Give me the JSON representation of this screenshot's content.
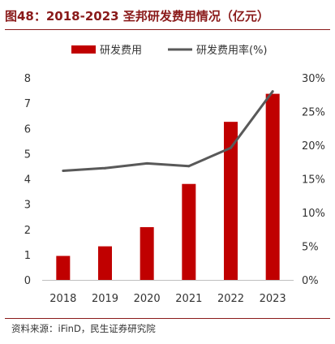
{
  "figure": {
    "title": "图48：2018-2023 圣邦研发费用情况（亿元）",
    "source": "资料来源：iFinD，民生证券研究院"
  },
  "chart_data": {
    "type": "bar",
    "categories": [
      "2018",
      "2019",
      "2020",
      "2021",
      "2022",
      "2023"
    ],
    "series": [
      {
        "name": "研发费用",
        "type": "bar",
        "axis": "left",
        "color": "#c00000",
        "values": [
          0.95,
          1.33,
          2.09,
          3.8,
          6.26,
          7.37
        ]
      },
      {
        "name": "研发费用率(%)",
        "type": "line",
        "axis": "right",
        "color": "#595959",
        "values": [
          16.2,
          16.6,
          17.3,
          16.9,
          19.6,
          28.0
        ]
      }
    ],
    "y_left": {
      "min": 0,
      "max": 8,
      "ticks": [
        "0",
        "1",
        "2",
        "3",
        "4",
        "5",
        "6",
        "7",
        "8"
      ]
    },
    "y_right": {
      "min": 0,
      "max": 30,
      "ticks": [
        "0%",
        "5%",
        "10%",
        "15%",
        "20%",
        "25%",
        "30%"
      ]
    },
    "grid": false,
    "legend": "top-center"
  }
}
